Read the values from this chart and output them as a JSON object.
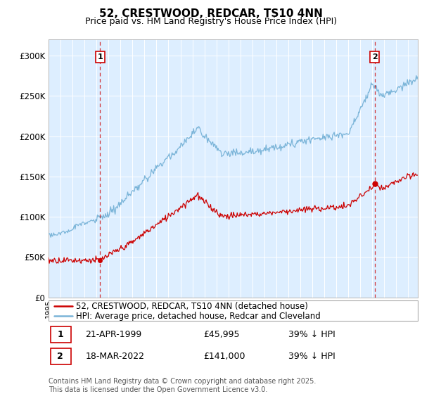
{
  "title": "52, CRESTWOOD, REDCAR, TS10 4NN",
  "subtitle": "Price paid vs. HM Land Registry's House Price Index (HPI)",
  "legend_line1": "52, CRESTWOOD, REDCAR, TS10 4NN (detached house)",
  "legend_line2": "HPI: Average price, detached house, Redcar and Cleveland",
  "transaction1_date": "21-APR-1999",
  "transaction1_price": "£45,995",
  "transaction1_hpi": "39% ↓ HPI",
  "transaction2_date": "18-MAR-2022",
  "transaction2_price": "£141,000",
  "transaction2_hpi": "39% ↓ HPI",
  "footer": "Contains HM Land Registry data © Crown copyright and database right 2025.\nThis data is licensed under the Open Government Licence v3.0.",
  "hpi_color": "#7ab4d8",
  "price_color": "#cc0000",
  "vline_color": "#cc0000",
  "plot_bg_color": "#ddeeff",
  "marker1_year": 1999.3,
  "marker2_year": 2022.2,
  "ylim_max": 320000,
  "ylim_min": 0,
  "xmin": 1995,
  "xmax": 2025.8
}
